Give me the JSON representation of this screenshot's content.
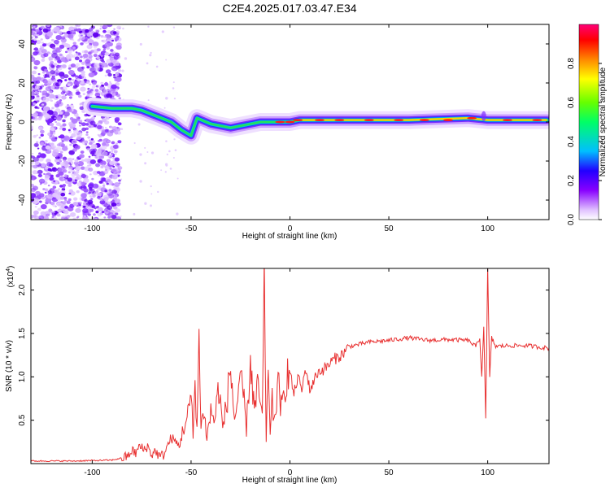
{
  "figure_title": "C2E4.2025.017.03.47.E34",
  "chart_data": [
    {
      "type": "heatmap",
      "title": "",
      "xlabel": "Height of straight line (km)",
      "ylabel": "Frequency (Hz)",
      "xlim": [
        -131,
        131
      ],
      "ylim": [
        -50,
        50
      ],
      "xticks": [
        -100,
        -50,
        0,
        50,
        100
      ],
      "xtick_labels": [
        "-100",
        "-50",
        "0",
        "50",
        "100"
      ],
      "yticks": [
        -40,
        -20,
        0,
        20,
        40
      ],
      "ytick_labels": [
        "-40",
        "-20",
        "0",
        "20",
        "40"
      ],
      "colorbar": {
        "label": "Normalized spectral amplitude",
        "range": [
          0,
          1
        ],
        "ticks": [
          0.0,
          0.2,
          0.4,
          0.6,
          0.8
        ],
        "tick_labels": [
          "0.0",
          "0.2",
          "0.4",
          "0.6",
          "0.8"
        ],
        "colormap": [
          "#ffffff",
          "#d9b3ff",
          "#8800ff",
          "#2200ff",
          "#00bfff",
          "#00ff88",
          "#66ff00",
          "#ffff00",
          "#ff8800",
          "#ff0000",
          "#ff0077"
        ]
      },
      "features": {
        "noise_region_x": [
          -131,
          -86
        ],
        "ridge": [
          {
            "x": -100,
            "y": 8
          },
          {
            "x": -90,
            "y": 7
          },
          {
            "x": -80,
            "y": 7
          },
          {
            "x": -75,
            "y": 6
          },
          {
            "x": -70,
            "y": 4
          },
          {
            "x": -65,
            "y": 2
          },
          {
            "x": -60,
            "y": 0
          },
          {
            "x": -55,
            "y": -4
          },
          {
            "x": -50,
            "y": -7
          },
          {
            "x": -47,
            "y": 2
          },
          {
            "x": -40,
            "y": -1
          },
          {
            "x": -35,
            "y": -2
          },
          {
            "x": -30,
            "y": -3
          },
          {
            "x": -25,
            "y": -2
          },
          {
            "x": -20,
            "y": -1
          },
          {
            "x": -15,
            "y": 0
          },
          {
            "x": -10,
            "y": 0
          },
          {
            "x": 0,
            "y": 0
          },
          {
            "x": 5,
            "y": 1
          },
          {
            "x": 15,
            "y": 1
          },
          {
            "x": 30,
            "y": 1
          },
          {
            "x": 60,
            "y": 1
          },
          {
            "x": 90,
            "y": 2
          },
          {
            "x": 100,
            "y": 1
          },
          {
            "x": 130,
            "y": 1
          }
        ]
      }
    },
    {
      "type": "line",
      "title": "",
      "xlabel": "Height of straight line (km)",
      "ylabel": "SNR (10 * v/v)",
      "y_multiplier": "(x10^4)",
      "multiplier_base": "(x10",
      "multiplier_exp": "4",
      "xlim": [
        -131,
        131
      ],
      "ylim": [
        0,
        2.25
      ],
      "xticks": [
        -100,
        -50,
        0,
        50,
        100
      ],
      "xtick_labels": [
        "-100",
        "-50",
        "0",
        "50",
        "100"
      ],
      "yticks": [
        0.5,
        1.0,
        1.5,
        2.0
      ],
      "ytick_labels": [
        "0.5",
        "1.0",
        "1.5",
        "2.0"
      ],
      "color": "#e83030",
      "series": [
        {
          "x": [
            -131,
            -110,
            -90,
            -82,
            -80,
            -78,
            -76,
            -74,
            -72,
            -70,
            -68,
            -66,
            -64,
            -62,
            -60,
            -58,
            -56,
            -54,
            -52,
            -50,
            -49,
            -48,
            -47,
            -46,
            -45,
            -44,
            -42,
            -40,
            -38,
            -36,
            -34,
            -32,
            -30,
            -28,
            -26,
            -24,
            -22,
            -20,
            -18,
            -16,
            -14,
            -13,
            -12,
            -11,
            -10,
            -9,
            -8,
            -6,
            -4,
            -2,
            0,
            2,
            4,
            6,
            8,
            10,
            14,
            18,
            22,
            26,
            30,
            40,
            50,
            60,
            70,
            80,
            90,
            94,
            96,
            97,
            98,
            99,
            100,
            101,
            102,
            104,
            110,
            120,
            131
          ],
          "y": [
            0.03,
            0.03,
            0.04,
            0.08,
            0.15,
            0.12,
            0.2,
            0.16,
            0.2,
            0.1,
            0.15,
            0.08,
            0.1,
            0.2,
            0.3,
            0.25,
            0.2,
            0.4,
            0.5,
            0.8,
            0.3,
            1.0,
            0.4,
            1.45,
            0.35,
            0.7,
            0.3,
            0.6,
            0.5,
            0.9,
            0.4,
            0.7,
            1.1,
            0.5,
            0.8,
            0.9,
            0.4,
            1.2,
            0.6,
            0.9,
            0.5,
            2.1,
            0.2,
            1.3,
            0.3,
            0.7,
            0.5,
            0.9,
            0.6,
            1.0,
            1.05,
            0.8,
            1.0,
            0.85,
            1.1,
            0.85,
            1.05,
            1.1,
            1.2,
            1.25,
            1.35,
            1.4,
            1.42,
            1.45,
            1.42,
            1.43,
            1.42,
            1.35,
            1.45,
            1.0,
            1.6,
            0.5,
            2.25,
            1.0,
            1.45,
            1.35,
            1.36,
            1.36,
            1.33
          ]
        }
      ]
    }
  ]
}
